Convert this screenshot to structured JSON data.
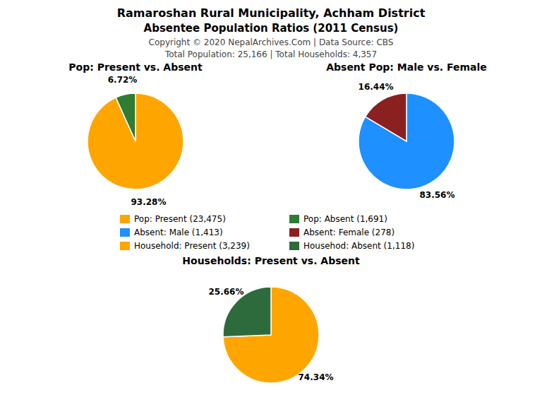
{
  "title": "Ramaroshan Rural Municipality, Achham District",
  "subtitle": "Absentee Population Ratios (2011 Census)",
  "annotations": [
    "Copyright © 2020 NepalArchives.Com | Data Source: CBS",
    "Total Population: 25,166 | Total Households: 4,357"
  ],
  "chart_data": [
    {
      "type": "pie",
      "title": "Pop: Present vs. Absent",
      "categories": [
        "Pop: Present (23,475)",
        "Pop: Absent (1,691)"
      ],
      "values": [
        93.28,
        6.72
      ],
      "value_labels": [
        "93.28%",
        "6.72%"
      ],
      "colors": [
        "#FFA500",
        "#2E7D32"
      ],
      "data_labels": true,
      "legend": "center"
    },
    {
      "type": "pie",
      "title": "Absent Pop: Male vs. Female",
      "categories": [
        "Absent: Male (1,413)",
        "Absent: Female (278)"
      ],
      "values": [
        83.56,
        16.44
      ],
      "value_labels": [
        "83.56%",
        "16.44%"
      ],
      "colors": [
        "#1E90FF",
        "#8B2020"
      ],
      "data_labels": true,
      "legend": "center"
    },
    {
      "type": "pie",
      "title": "Households: Present vs. Absent",
      "categories": [
        "Household: Present (3,239)",
        "Househod: Absent (1,118)"
      ],
      "values": [
        74.34,
        25.66
      ],
      "value_labels": [
        "74.34%",
        "25.66%"
      ],
      "colors": [
        "#FFA500",
        "#2E6B3C"
      ],
      "data_labels": true,
      "legend": "center"
    }
  ]
}
